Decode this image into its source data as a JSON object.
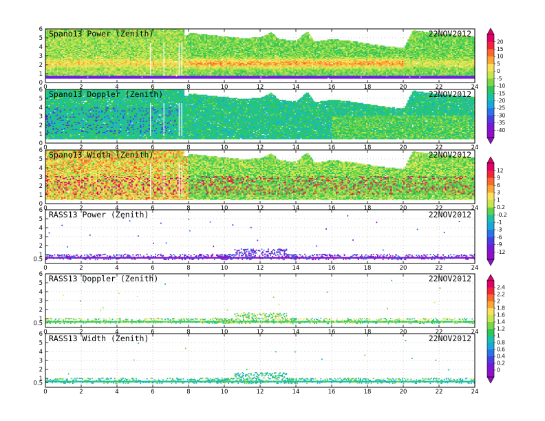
{
  "chart_data": [
    {
      "type": "heatmap",
      "title": "Spano13 Power (Zenith)",
      "date": "22NOV2012",
      "xlim": [
        0,
        24
      ],
      "ylim": [
        0,
        6
      ],
      "x_ticks": [
        0,
        2,
        4,
        6,
        8,
        10,
        12,
        14,
        16,
        18,
        20,
        22,
        24
      ],
      "y_ticks": [
        0,
        1,
        2,
        3,
        4,
        5,
        6
      ],
      "grid": true,
      "field": "power",
      "colorbar": "A"
    },
    {
      "type": "heatmap",
      "title": "Spano13 Doppler (Zenith)",
      "date": "22NOV2012",
      "xlim": [
        0,
        24
      ],
      "ylim": [
        0,
        6
      ],
      "x_ticks": [
        0,
        2,
        4,
        6,
        8,
        10,
        12,
        14,
        16,
        18,
        20,
        22,
        24
      ],
      "y_ticks": [
        0,
        1,
        2,
        3,
        4,
        5,
        6
      ],
      "grid": true,
      "field": "doppler",
      "colorbar": "A"
    },
    {
      "type": "heatmap",
      "title": "Spano13 Width (Zenith)",
      "date": "22NOV2012",
      "xlim": [
        0,
        24
      ],
      "ylim": [
        0,
        6
      ],
      "x_ticks": [
        0,
        2,
        4,
        6,
        8,
        10,
        12,
        14,
        16,
        18,
        20,
        22,
        24
      ],
      "y_ticks": [
        0,
        1,
        2,
        3,
        4,
        5,
        6
      ],
      "grid": true,
      "field": "width",
      "colorbar": "B"
    },
    {
      "type": "heatmap",
      "title": "RASS13 Power (Zenith)",
      "date": "22NOV2012",
      "xlim": [
        0,
        24
      ],
      "ylim": [
        0,
        6
      ],
      "x_ticks": [
        0,
        2,
        4,
        6,
        8,
        10,
        12,
        14,
        16,
        18,
        20,
        22,
        24
      ],
      "y_ticks": [
        0.5,
        1,
        2,
        3,
        4,
        5,
        6
      ],
      "grid": true,
      "field": "rass_power",
      "colorbar": "B"
    },
    {
      "type": "heatmap",
      "title": "RASS13 Doppler (Zenith)",
      "date": "22NOV2012",
      "xlim": [
        0,
        24
      ],
      "ylim": [
        0,
        6
      ],
      "x_ticks": [
        0,
        2,
        4,
        6,
        8,
        10,
        12,
        14,
        16,
        18,
        20,
        22,
        24
      ],
      "y_ticks": [
        0.5,
        1,
        2,
        3,
        4,
        5,
        6
      ],
      "grid": true,
      "field": "rass_doppler",
      "colorbar": "C"
    },
    {
      "type": "heatmap",
      "title": "RASS13 Width (Zenith)",
      "date": "22NOV2012",
      "xlim": [
        0,
        24
      ],
      "ylim": [
        0,
        6
      ],
      "x_ticks": [
        0,
        2,
        4,
        6,
        8,
        10,
        12,
        14,
        16,
        18,
        20,
        22,
        24
      ],
      "y_ticks": [
        0.5,
        1,
        2,
        3,
        4,
        5,
        6
      ],
      "grid": true,
      "field": "rass_width",
      "colorbar": "C"
    }
  ],
  "colorbars": {
    "A": {
      "labels": [
        "20",
        "15",
        "10",
        "5",
        "0",
        "-5",
        "-10",
        "-15",
        "-20",
        "-25",
        "-30",
        "-35",
        "-40"
      ],
      "colors": [
        "#e0006a",
        "#f4243a",
        "#fa6a2c",
        "#fca636",
        "#fde05a",
        "#c8e64e",
        "#7cd64a",
        "#2ec85a",
        "#1ac1a8",
        "#1aa8d8",
        "#2a74e8",
        "#4a3ee0",
        "#7a18d8",
        "#9010c8"
      ]
    },
    "B": {
      "labels": [
        "12",
        "9",
        "6",
        "3",
        "1",
        "0.2",
        "-0.2",
        "-1",
        "-3",
        "-6",
        "-9",
        "-12"
      ],
      "colors": [
        "#e0006a",
        "#f4243a",
        "#fa6a2c",
        "#fca636",
        "#fde05a",
        "#c8e64e",
        "#5ed24c",
        "#1ac1a8",
        "#1aa8d8",
        "#2a74e8",
        "#4a3ee0",
        "#7a18d8",
        "#9010c8"
      ]
    },
    "C": {
      "labels": [
        "2.4",
        "2.2",
        "2",
        "1.8",
        "1.6",
        "1.4",
        "1.2",
        "1",
        "0.8",
        "0.6",
        "0.4",
        "0.2",
        "0"
      ],
      "colors": [
        "#e0006a",
        "#f4243a",
        "#fa6a2c",
        "#fca636",
        "#fde05a",
        "#c8e64e",
        "#7cd64a",
        "#2ec85a",
        "#1ac1a8",
        "#1aa8d8",
        "#2a74e8",
        "#4a3ee0",
        "#7a18d8",
        "#9010c8"
      ]
    }
  }
}
